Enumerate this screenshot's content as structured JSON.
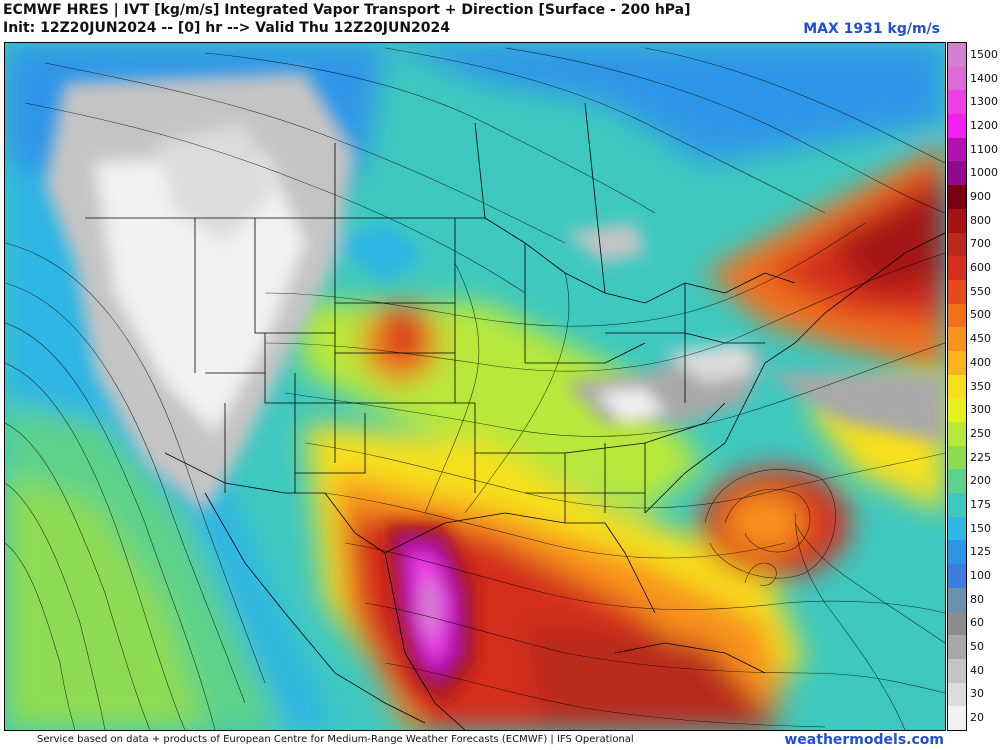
{
  "header": {
    "title_line1": "ECMWF HRES | IVT [kg/m/s] Integrated Vapor Transport + Direction [Surface - 200 hPa]",
    "title_line2": "Init: 12Z20JUN2024 -- [0] hr --> Valid Thu 12Z20JUN2024",
    "max_label": "MAX 1931 kg/m/s"
  },
  "colorbar": {
    "levels": [
      {
        "label": "1500",
        "color": "#d27fd0"
      },
      {
        "label": "1400",
        "color": "#dc6bd8"
      },
      {
        "label": "1300",
        "color": "#ec3fe6"
      },
      {
        "label": "1200",
        "color": "#f41ff0"
      },
      {
        "label": "1100",
        "color": "#b411b4"
      },
      {
        "label": "1000",
        "color": "#8f0a8f"
      },
      {
        "label": "900",
        "color": "#7a0012"
      },
      {
        "label": "800",
        "color": "#a51414"
      },
      {
        "label": "700",
        "color": "#b82a1e"
      },
      {
        "label": "600",
        "color": "#d42e1e"
      },
      {
        "label": "550",
        "color": "#e44a1c"
      },
      {
        "label": "500",
        "color": "#f0701c"
      },
      {
        "label": "450",
        "color": "#f8921e"
      },
      {
        "label": "400",
        "color": "#fcb41e"
      },
      {
        "label": "350",
        "color": "#f6e01e"
      },
      {
        "label": "300",
        "color": "#e6f01e"
      },
      {
        "label": "250",
        "color": "#b8e83a"
      },
      {
        "label": "225",
        "color": "#8edb52"
      },
      {
        "label": "200",
        "color": "#5cd28a"
      },
      {
        "label": "175",
        "color": "#3ec8c0"
      },
      {
        "label": "150",
        "color": "#2eb6e4"
      },
      {
        "label": "125",
        "color": "#2e96e8"
      },
      {
        "label": "100",
        "color": "#3a7ee0"
      },
      {
        "label": "80",
        "color": "#6e90b0"
      },
      {
        "label": "60",
        "color": "#8c8c8c"
      },
      {
        "label": "50",
        "color": "#a8a8a8"
      },
      {
        "label": "40",
        "color": "#c4c4c4"
      },
      {
        "label": "30",
        "color": "#dcdcdc"
      },
      {
        "label": "20",
        "color": "#f2f2f2"
      }
    ]
  },
  "footer": {
    "credit": "Service based on data + products of European Centre for Medium-Range Weather Forecasts (ECMWF) | IFS Operational",
    "brand": "weathermodels.com"
  }
}
